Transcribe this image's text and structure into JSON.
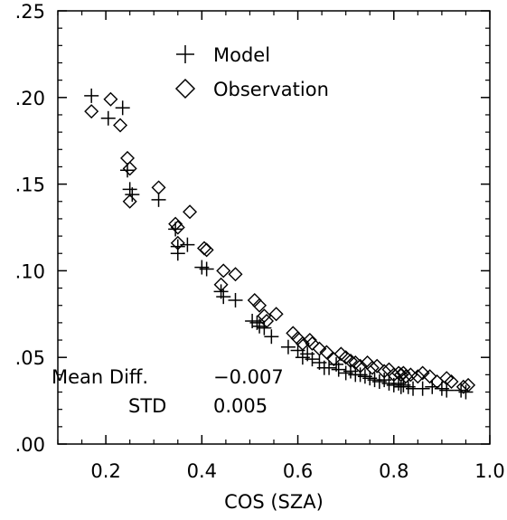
{
  "chart_data": {
    "type": "scatter",
    "title": "",
    "xlabel": "COS (SZA)",
    "ylabel": "",
    "xlim": [
      0.1,
      1.0
    ],
    "ylim": [
      0.0,
      0.25
    ],
    "xticks": [
      {
        "value": 0.2,
        "label": "0.2"
      },
      {
        "value": 0.4,
        "label": "0.4"
      },
      {
        "value": 0.6,
        "label": "0.6"
      },
      {
        "value": 0.8,
        "label": "0.8"
      },
      {
        "value": 1.0,
        "label": "1.0"
      }
    ],
    "yticks": [
      {
        "value": 0.0,
        "label": ".00"
      },
      {
        "value": 0.05,
        "label": ".05"
      },
      {
        "value": 0.1,
        "label": ".10"
      },
      {
        "value": 0.15,
        "label": ".15"
      },
      {
        "value": 0.2,
        "label": ".20"
      },
      {
        "value": 0.25,
        "label": ".25"
      }
    ],
    "grid": false,
    "legend_position": "top-center",
    "series": [
      {
        "name": "Model",
        "marker": "plus",
        "color": "#000000",
        "points": [
          [
            0.17,
            0.201
          ],
          [
            0.205,
            0.188
          ],
          [
            0.235,
            0.194
          ],
          [
            0.245,
            0.158
          ],
          [
            0.25,
            0.147
          ],
          [
            0.255,
            0.144
          ],
          [
            0.31,
            0.141
          ],
          [
            0.345,
            0.124
          ],
          [
            0.35,
            0.11
          ],
          [
            0.35,
            0.114
          ],
          [
            0.37,
            0.115
          ],
          [
            0.4,
            0.102
          ],
          [
            0.41,
            0.101
          ],
          [
            0.44,
            0.088
          ],
          [
            0.445,
            0.085
          ],
          [
            0.47,
            0.083
          ],
          [
            0.505,
            0.071
          ],
          [
            0.515,
            0.07
          ],
          [
            0.52,
            0.068
          ],
          [
            0.53,
            0.067
          ],
          [
            0.545,
            0.062
          ],
          [
            0.58,
            0.056
          ],
          [
            0.6,
            0.054
          ],
          [
            0.61,
            0.05
          ],
          [
            0.62,
            0.052
          ],
          [
            0.63,
            0.049
          ],
          [
            0.645,
            0.047
          ],
          [
            0.655,
            0.044
          ],
          [
            0.665,
            0.044
          ],
          [
            0.68,
            0.046
          ],
          [
            0.685,
            0.043
          ],
          [
            0.7,
            0.041
          ],
          [
            0.71,
            0.042
          ],
          [
            0.72,
            0.04
          ],
          [
            0.73,
            0.04
          ],
          [
            0.74,
            0.039
          ],
          [
            0.75,
            0.038
          ],
          [
            0.76,
            0.037
          ],
          [
            0.77,
            0.036
          ],
          [
            0.78,
            0.037
          ],
          [
            0.79,
            0.035
          ],
          [
            0.8,
            0.034
          ],
          [
            0.81,
            0.035
          ],
          [
            0.815,
            0.033
          ],
          [
            0.82,
            0.034
          ],
          [
            0.83,
            0.033
          ],
          [
            0.84,
            0.032
          ],
          [
            0.86,
            0.032
          ],
          [
            0.88,
            0.033
          ],
          [
            0.9,
            0.032
          ],
          [
            0.91,
            0.031
          ],
          [
            0.94,
            0.031
          ],
          [
            0.95,
            0.03
          ]
        ]
      },
      {
        "name": "Observation",
        "marker": "diamond",
        "color": "#000000",
        "points": [
          [
            0.17,
            0.192
          ],
          [
            0.21,
            0.199
          ],
          [
            0.23,
            0.184
          ],
          [
            0.245,
            0.165
          ],
          [
            0.25,
            0.159
          ],
          [
            0.25,
            0.14
          ],
          [
            0.31,
            0.148
          ],
          [
            0.345,
            0.127
          ],
          [
            0.35,
            0.125
          ],
          [
            0.35,
            0.116
          ],
          [
            0.375,
            0.134
          ],
          [
            0.405,
            0.113
          ],
          [
            0.41,
            0.112
          ],
          [
            0.44,
            0.092
          ],
          [
            0.445,
            0.1
          ],
          [
            0.47,
            0.098
          ],
          [
            0.51,
            0.083
          ],
          [
            0.52,
            0.08
          ],
          [
            0.53,
            0.074
          ],
          [
            0.535,
            0.071
          ],
          [
            0.555,
            0.075
          ],
          [
            0.59,
            0.064
          ],
          [
            0.6,
            0.061
          ],
          [
            0.61,
            0.058
          ],
          [
            0.625,
            0.06
          ],
          [
            0.63,
            0.058
          ],
          [
            0.645,
            0.055
          ],
          [
            0.66,
            0.053
          ],
          [
            0.675,
            0.049
          ],
          [
            0.69,
            0.052
          ],
          [
            0.7,
            0.05
          ],
          [
            0.71,
            0.048
          ],
          [
            0.72,
            0.047
          ],
          [
            0.73,
            0.045
          ],
          [
            0.745,
            0.047
          ],
          [
            0.755,
            0.044
          ],
          [
            0.765,
            0.045
          ],
          [
            0.78,
            0.042
          ],
          [
            0.79,
            0.043
          ],
          [
            0.8,
            0.04
          ],
          [
            0.81,
            0.041
          ],
          [
            0.815,
            0.04
          ],
          [
            0.82,
            0.041
          ],
          [
            0.825,
            0.039
          ],
          [
            0.835,
            0.04
          ],
          [
            0.85,
            0.039
          ],
          [
            0.86,
            0.041
          ],
          [
            0.875,
            0.039
          ],
          [
            0.89,
            0.036
          ],
          [
            0.91,
            0.038
          ],
          [
            0.92,
            0.036
          ],
          [
            0.945,
            0.033
          ],
          [
            0.955,
            0.034
          ]
        ]
      }
    ],
    "annotations": {
      "mean_diff_label": "Mean Diff.",
      "mean_diff_value": "−0.007",
      "std_label": "STD",
      "std_value": "0.005"
    }
  }
}
